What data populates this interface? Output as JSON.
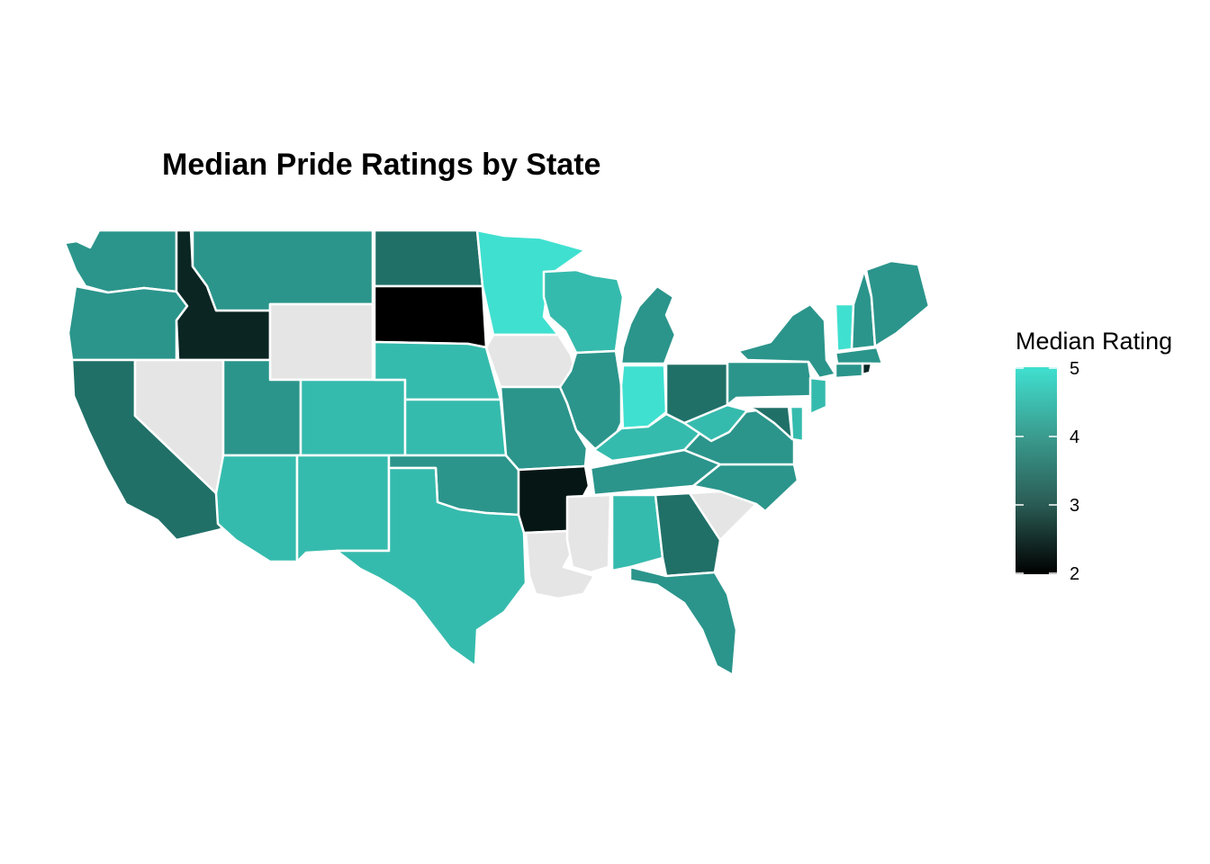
{
  "title": "Median Pride Ratings by State",
  "legend": {
    "title": "Median Rating",
    "ticks": [
      "5",
      "4",
      "3",
      "2"
    ],
    "min": 2,
    "max": 5,
    "color_low": "#000000",
    "color_high": "#40E0D0",
    "na_color": "#E5E5E5"
  },
  "chart_data": {
    "type": "choropleth",
    "value_label": "Median Rating",
    "states": {
      "Washington": 4,
      "Oregon": 4,
      "California": 3.5,
      "Idaho": 2.5,
      "Nevada": null,
      "Montana": 4,
      "Wyoming": null,
      "Utah": 4,
      "Arizona": 4.5,
      "Colorado": 4.5,
      "New Mexico": 4.5,
      "North Dakota": 3.5,
      "South Dakota": 2,
      "Nebraska": 4.5,
      "Kansas": 4.5,
      "Oklahoma": 4,
      "Texas": 4.5,
      "Minnesota": 5,
      "Iowa": null,
      "Missouri": 4,
      "Arkansas": 2.3,
      "Louisiana": null,
      "Wisconsin": 4.5,
      "Illinois": 4,
      "Michigan": 4,
      "Indiana": 5,
      "Ohio": 3.5,
      "Kentucky": 4.5,
      "Tennessee": 4,
      "Mississippi": null,
      "Alabama": 4.5,
      "Georgia": 3.5,
      "Florida": 4,
      "South Carolina": null,
      "North Carolina": 4,
      "Virginia": 4,
      "West Virginia": 4.5,
      "Pennsylvania": 4,
      "New York": 4,
      "Vermont": 5,
      "New Hampshire": 4,
      "Maine": 4,
      "Massachusetts": 4,
      "Rhode Island": 2.5,
      "Connecticut": 4,
      "New Jersey": 4.5,
      "Delaware": 4.5,
      "Maryland": 3.5
    }
  }
}
